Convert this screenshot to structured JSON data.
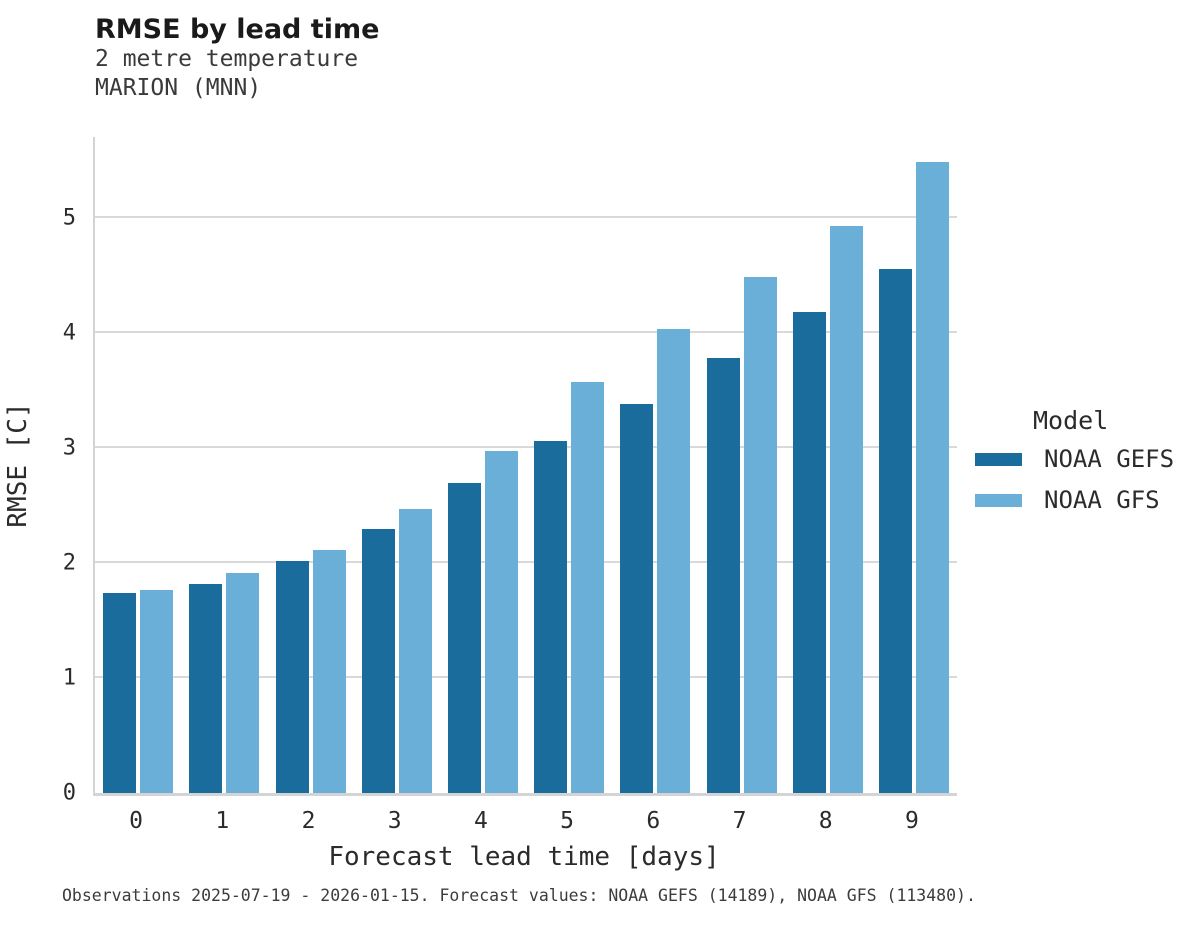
{
  "chart_data": {
    "type": "bar",
    "title": "RMSE by lead time",
    "subtitle_line1": "2 metre temperature",
    "subtitle_line2": "MARION (MNN)",
    "xlabel": "Forecast lead time [days]",
    "ylabel": "RMSE [C]",
    "categories": [
      "0",
      "1",
      "2",
      "3",
      "4",
      "5",
      "6",
      "7",
      "8",
      "9"
    ],
    "series": [
      {
        "name": "NOAA GEFS",
        "color": "#1a6c9c",
        "values": [
          1.74,
          1.82,
          2.02,
          2.29,
          2.69,
          3.06,
          3.38,
          3.78,
          4.18,
          4.55
        ]
      },
      {
        "name": "NOAA GFS",
        "color": "#69afd7",
        "values": [
          1.76,
          1.91,
          2.11,
          2.47,
          2.97,
          3.57,
          4.03,
          4.48,
          4.93,
          5.48
        ]
      }
    ],
    "ylim": [
      0,
      5.7
    ],
    "yticks": [
      0,
      1,
      2,
      3,
      4,
      5
    ],
    "grid": "horizontal",
    "legend_title": "Model",
    "legend_position": "right",
    "caption": "Observations 2025-07-19 - 2026-01-15. Forecast values: NOAA GEFS (14189), NOAA GFS (113480)."
  },
  "colors": {
    "grid": "#d9d9d9",
    "spine": "#d4d4d4",
    "title_text": "#1a1a1a",
    "body_text": "#2b2b2b"
  }
}
